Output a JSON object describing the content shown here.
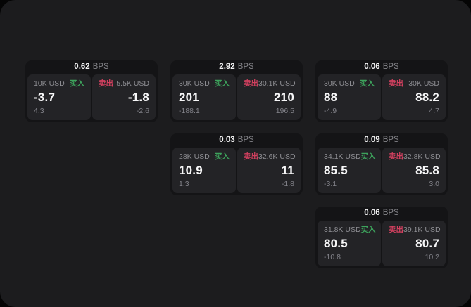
{
  "labels": {
    "bps_unit": "BPS",
    "buy": "买入",
    "sell": "卖出"
  },
  "colors": {
    "accent_green": "#3da35c",
    "accent_red": "#d2405f",
    "page_background": "#1c1c1e",
    "card_background": "#141416",
    "panel_background": "#232326"
  },
  "cards": [
    {
      "bps": "0.62",
      "buy": {
        "size": "10K USD",
        "price": "-3.7",
        "delta": "4.3"
      },
      "sell": {
        "size": "5.5K USD",
        "price": "-1.8",
        "delta": "-2.6"
      }
    },
    {
      "bps": "2.92",
      "buy": {
        "size": "30K USD",
        "price": "201",
        "delta": "-188.1"
      },
      "sell": {
        "size": "30.1K USD",
        "price": "210",
        "delta": "196.5"
      }
    },
    {
      "bps": "0.06",
      "buy": {
        "size": "30K USD",
        "price": "88",
        "delta": "-4.9"
      },
      "sell": {
        "size": "30K USD",
        "price": "88.2",
        "delta": "4.7"
      }
    },
    {
      "bps": "0.03",
      "buy": {
        "size": "28K USD",
        "price": "10.9",
        "delta": "1.3"
      },
      "sell": {
        "size": "32.6K USD",
        "price": "11",
        "delta": "-1.8"
      }
    },
    {
      "bps": "0.09",
      "buy": {
        "size": "34.1K USD",
        "price": "85.5",
        "delta": "-3.1"
      },
      "sell": {
        "size": "32.8K USD",
        "price": "85.8",
        "delta": "3.0"
      }
    },
    {
      "bps": "0.06",
      "buy": {
        "size": "31.8K USD",
        "price": "80.5",
        "delta": "-10.8"
      },
      "sell": {
        "size": "39.1K USD",
        "price": "80.7",
        "delta": "10.2"
      }
    }
  ],
  "layout_positions": [
    "r1c1",
    "r1c2",
    "r1c3",
    "r2c2",
    "r2c3",
    "r3c3"
  ]
}
